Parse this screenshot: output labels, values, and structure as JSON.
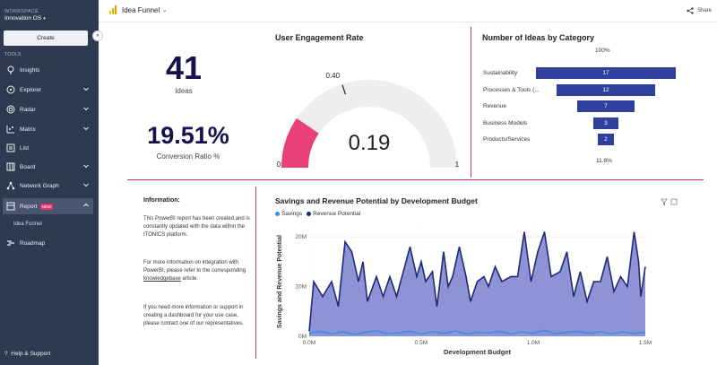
{
  "sidebar": {
    "workspace_label": "WORKSPACE",
    "workspace_name": "Innovation OS",
    "create_label": "Create",
    "tools_label": "TOOLS",
    "items": [
      {
        "label": "Insights"
      },
      {
        "label": "Explorer"
      },
      {
        "label": "Radar"
      },
      {
        "label": "Matrix"
      },
      {
        "label": "List"
      },
      {
        "label": "Board"
      },
      {
        "label": "Network Graph"
      },
      {
        "label": "Report",
        "badge": "NEW"
      },
      {
        "label": "Roadmap"
      }
    ],
    "sub_item": "Idea Funnel",
    "help_label": "Help & Support"
  },
  "topbar": {
    "title": "Idea Funnel",
    "share_label": "Share"
  },
  "kpi": {
    "ideas_value": "41",
    "ideas_label": "Ideas",
    "ratio_value": "19.51%",
    "ratio_label": "Conversion Ratio %"
  },
  "gauge": {
    "title": "User Engagement Rate",
    "value": 0.19,
    "value_text": "0.19",
    "target": 0.4,
    "target_text": "0.40",
    "min_text": "0",
    "max_text": "1",
    "fill_color": "#e8417a",
    "track_color": "#f0eeec"
  },
  "funnel": {
    "title": "Number of Ideas by Category",
    "top_pct": "100%",
    "bottom_pct": "11.8%",
    "color": "#2f3f9b",
    "rows": [
      {
        "label": "Sustainability",
        "value": 17,
        "value_text": "17"
      },
      {
        "label": "Processes & Tools (...",
        "value": 12,
        "value_text": "12"
      },
      {
        "label": "Revenue",
        "value": 7,
        "value_text": "7"
      },
      {
        "label": "Business Models",
        "value": 3,
        "value_text": "3"
      },
      {
        "label": "Products/Services",
        "value": 2,
        "value_text": "2"
      }
    ]
  },
  "info": {
    "title": "Information:",
    "p1": "This PowerBI report has been created and is constantly updated with the data within the ITONICS platform.",
    "p2_a": "For more information on integration with PowerBI, please refer to the corresponding ",
    "p2_link": "knowledgebase",
    "p2_b": " article.",
    "p3": "If you need more information or support in creating a dashboard for your use case, please contact one of our representatives."
  },
  "chart_data": {
    "type": "area",
    "title": "Savings and Revenue Potential by Development Budget",
    "xlabel": "Development Budget",
    "ylabel": "Savings and Revenue Potential",
    "xlim": [
      0,
      1.5
    ],
    "ylim": [
      0,
      22
    ],
    "x_ticks": [
      "0.0M",
      "0.5M",
      "1.0M",
      "1.5M"
    ],
    "y_ticks": [
      "0M",
      "10M",
      "20M"
    ],
    "legend": [
      "Savings",
      "Revenue Potential"
    ],
    "colors": {
      "savings": "#3d8fe0",
      "revenue": "#1f2a78",
      "revenue_fill": "#8e93d6"
    },
    "series": [
      {
        "name": "Revenue Potential",
        "x": [
          0.0,
          0.02,
          0.06,
          0.1,
          0.13,
          0.16,
          0.19,
          0.22,
          0.24,
          0.26,
          0.3,
          0.33,
          0.36,
          0.39,
          0.42,
          0.45,
          0.48,
          0.5,
          0.52,
          0.55,
          0.57,
          0.6,
          0.62,
          0.64,
          0.67,
          0.7,
          0.72,
          0.75,
          0.78,
          0.8,
          0.83,
          0.86,
          0.9,
          0.93,
          0.96,
          0.99,
          1.02,
          1.05,
          1.08,
          1.12,
          1.15,
          1.18,
          1.21,
          1.24,
          1.27,
          1.3,
          1.33,
          1.36,
          1.39,
          1.42,
          1.45,
          1.47,
          1.48,
          1.5
        ],
        "values": [
          1,
          11,
          8,
          11,
          6,
          19,
          17,
          11,
          15,
          7,
          12,
          8,
          12,
          8,
          13,
          18,
          12,
          15,
          11,
          13,
          6,
          17,
          10,
          12,
          18,
          12,
          7,
          11,
          12,
          10,
          14,
          11,
          12,
          12,
          21,
          11,
          17,
          21,
          12,
          13,
          17,
          8,
          13,
          7,
          11,
          11,
          16,
          9,
          12,
          10,
          21,
          15,
          8,
          14
        ]
      },
      {
        "name": "Savings",
        "x": [
          0.0,
          0.05,
          0.1,
          0.15,
          0.2,
          0.25,
          0.3,
          0.35,
          0.4,
          0.45,
          0.5,
          0.55,
          0.6,
          0.65,
          0.7,
          0.75,
          0.8,
          0.85,
          0.9,
          0.95,
          1.0,
          1.05,
          1.1,
          1.15,
          1.2,
          1.25,
          1.3,
          1.35,
          1.4,
          1.45,
          1.5
        ],
        "values": [
          0.6,
          1.0,
          0.5,
          0.9,
          0.4,
          0.8,
          1.1,
          0.5,
          0.7,
          1.0,
          0.5,
          0.9,
          0.6,
          1.1,
          0.5,
          0.8,
          0.7,
          1.0,
          0.5,
          0.9,
          0.6,
          1.2,
          0.5,
          0.8,
          1.0,
          0.6,
          0.9,
          0.5,
          0.9,
          0.6,
          0.8
        ]
      }
    ]
  }
}
